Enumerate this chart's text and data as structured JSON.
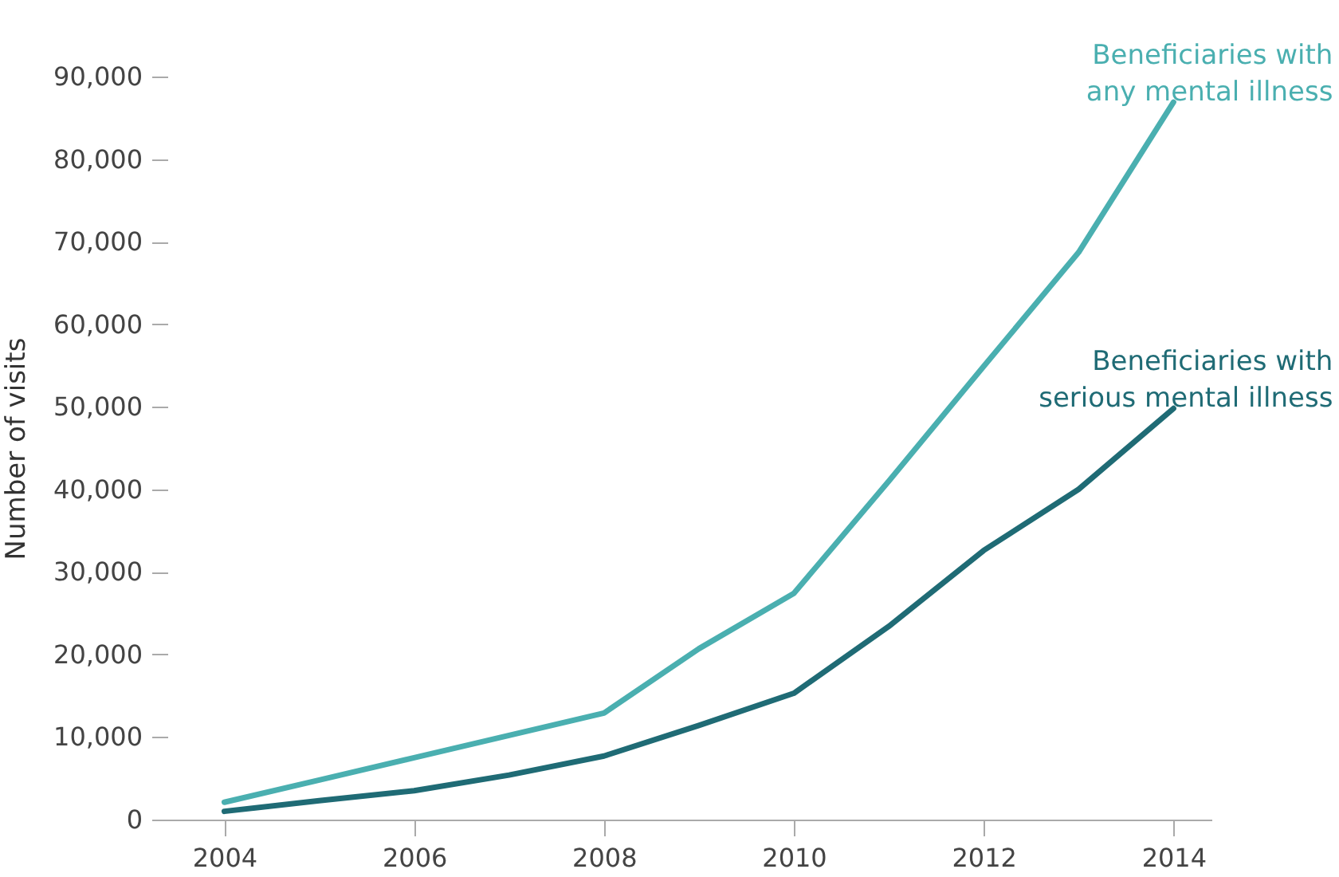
{
  "chart_data": {
    "type": "line",
    "ylabel": "Number of visits",
    "x": [
      2004,
      2005,
      2006,
      2007,
      2008,
      2009,
      2010,
      2011,
      2012,
      2013,
      2014
    ],
    "series": [
      {
        "name": "Beneficiaries with any mental illness",
        "color": "#4aafb0",
        "values": [
          2100,
          4800,
          7500,
          10200,
          12900,
          20700,
          27400,
          41000,
          54900,
          68700,
          86900
        ]
      },
      {
        "name": "Beneficiaries with serious mental illness",
        "color": "#1f6b75",
        "values": [
          1000,
          2300,
          3500,
          5400,
          7700,
          11400,
          15300,
          23400,
          32600,
          40000,
          49800
        ]
      }
    ],
    "xlim": [
      2003.4,
      2014.4
    ],
    "xticks": [
      2004,
      2006,
      2008,
      2010,
      2012,
      2014
    ],
    "ylim": [
      0,
      90000
    ],
    "yticks": [
      0,
      {
        "value": 10000,
        "label": "10,000"
      },
      {
        "value": 20000,
        "label": "20,000"
      },
      {
        "value": 30000,
        "label": "30,000"
      },
      {
        "value": 40000,
        "label": "40,000"
      },
      {
        "value": 50000,
        "label": "50,000"
      },
      {
        "value": 60000,
        "label": "60,000"
      },
      {
        "value": 70000,
        "label": "70,000"
      },
      {
        "value": 80000,
        "label": "80,000"
      },
      {
        "value": 90000,
        "label": "90,000"
      }
    ],
    "grid": false,
    "legend": false,
    "marker": "none",
    "line_style": "solid"
  }
}
